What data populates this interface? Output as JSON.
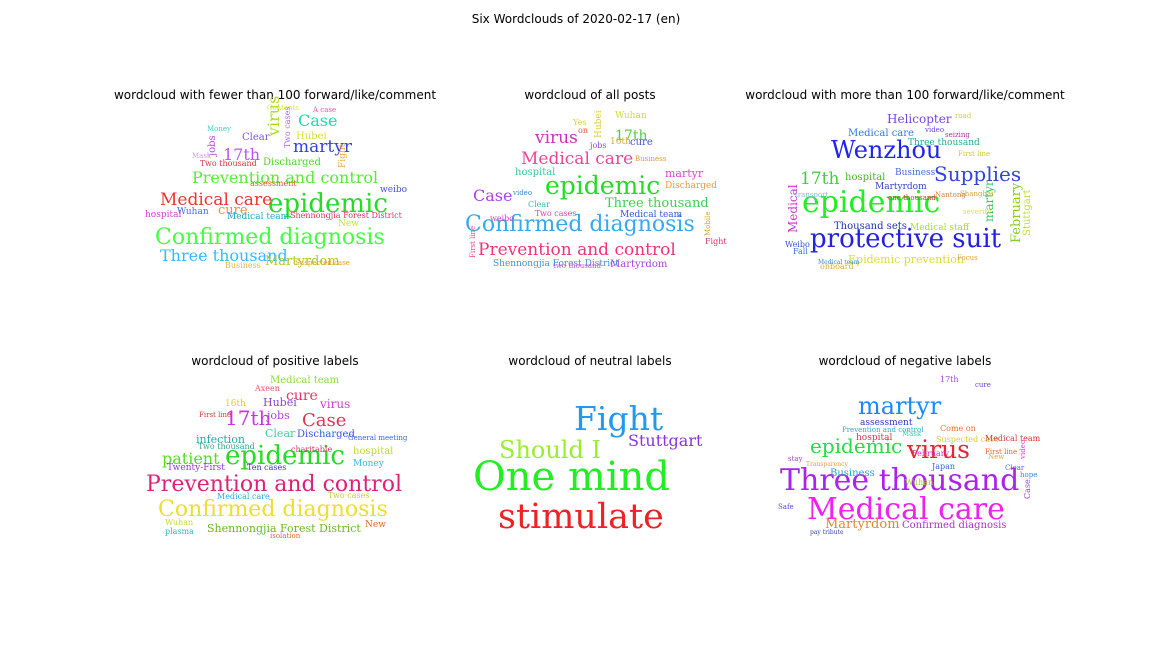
{
  "figure_title": "Six Wordclouds of 2020-02-17 (en)",
  "chart_data": [
    {
      "type": "wordcloud",
      "title": "wordcloud with fewer than 100 forward/like/comment",
      "words": [
        {
          "text": "Confirmed diagnosis",
          "color": "#44ff44"
        },
        {
          "text": "epidemic",
          "color": "#22dd22"
        },
        {
          "text": "Prevention and control",
          "color": "#55ee33"
        },
        {
          "text": "Three thousand",
          "color": "#33bbff"
        },
        {
          "text": "Medical care",
          "color": "#ee3333"
        },
        {
          "text": "martyr",
          "color": "#3344dd"
        },
        {
          "text": "Case",
          "color": "#22ddaa"
        },
        {
          "text": "virus",
          "color": "#aadd22"
        },
        {
          "text": "17th",
          "color": "#bb55ee"
        },
        {
          "text": "cure",
          "color": "#ff8833"
        },
        {
          "text": "Martyrdom",
          "color": "#aacc22"
        },
        {
          "text": "Shennongjia Forest District",
          "color": "#dd3366"
        },
        {
          "text": "Discharged",
          "color": "#55cc33"
        },
        {
          "text": "Hubei",
          "color": "#dddd33"
        },
        {
          "text": "Clear",
          "color": "#7755dd"
        },
        {
          "text": "Wuhan",
          "color": "#3377ee"
        },
        {
          "text": "Medical team",
          "color": "#22aacc"
        },
        {
          "text": "hospital",
          "color": "#cc44cc"
        },
        {
          "text": "weibo",
          "color": "#4455dd"
        },
        {
          "text": "New",
          "color": "#ccdd33"
        },
        {
          "text": "Business",
          "color": "#ddbb33"
        },
        {
          "text": "jobs",
          "color": "#bb44dd"
        },
        {
          "text": "Fight",
          "color": "#eeaa33"
        },
        {
          "text": "Two thousand",
          "color": "#dd3344"
        },
        {
          "text": "Money",
          "color": "#44cccc"
        },
        {
          "text": "Two cases",
          "color": "#aa66dd"
        },
        {
          "text": "assessment",
          "color": "#dd5533"
        },
        {
          "text": "Suspected case",
          "color": "#ee9933"
        },
        {
          "text": "Contents",
          "color": "#ccee44"
        },
        {
          "text": "A case",
          "color": "#ee55aa"
        },
        {
          "text": "Mask",
          "color": "#dd99ee"
        }
      ]
    },
    {
      "type": "wordcloud",
      "title": "wordcloud of all posts",
      "words": [
        {
          "text": "Confirmed diagnosis",
          "color": "#33aaee"
        },
        {
          "text": "epidemic",
          "color": "#22dd22"
        },
        {
          "text": "Prevention and control",
          "color": "#ee3377"
        },
        {
          "text": "Medical care",
          "color": "#ee4499"
        },
        {
          "text": "Three thousand",
          "color": "#44cc55"
        },
        {
          "text": "virus",
          "color": "#cc33bb"
        },
        {
          "text": "Case",
          "color": "#aa44dd"
        },
        {
          "text": "17th",
          "color": "#55cc33"
        },
        {
          "text": "martyr",
          "color": "#dd44cc"
        },
        {
          "text": "Medical team",
          "color": "#3355dd"
        },
        {
          "text": "Shennongjia Forest District",
          "color": "#3399dd"
        },
        {
          "text": "Martyrdom",
          "color": "#aa44dd"
        },
        {
          "text": "hospital",
          "color": "#33cc99"
        },
        {
          "text": "cure",
          "color": "#4455cc"
        },
        {
          "text": "Wuhan",
          "color": "#ccdd33"
        },
        {
          "text": "16th",
          "color": "#ccaa33"
        },
        {
          "text": "Yes",
          "color": "#ddcc33"
        },
        {
          "text": "on",
          "color": "#ee5533"
        },
        {
          "text": "jobs",
          "color": "#9944dd"
        },
        {
          "text": "Hubei",
          "color": "#ddcc33"
        },
        {
          "text": "Discharged",
          "color": "#ee9944"
        },
        {
          "text": "Clear",
          "color": "#33bbaa"
        },
        {
          "text": "Two cases",
          "color": "#dd44aa"
        },
        {
          "text": "weibo",
          "color": "#cc44cc"
        },
        {
          "text": "Fight",
          "color": "#dd3366"
        },
        {
          "text": "Business",
          "color": "#dd9933"
        },
        {
          "text": "Mobile",
          "color": "#ccaa33"
        },
        {
          "text": "First line",
          "color": "#ee4488"
        },
        {
          "text": "two thousand",
          "color": "#bb55dd"
        },
        {
          "text": "video",
          "color": "#3388dd"
        }
      ]
    },
    {
      "type": "wordcloud",
      "title": "wordcloud with more than 100 forward/like/comment",
      "words": [
        {
          "text": "epidemic",
          "color": "#22ee22"
        },
        {
          "text": "protective suit",
          "color": "#2222dd"
        },
        {
          "text": "Wenzhou",
          "color": "#2222ee"
        },
        {
          "text": "Supplies",
          "color": "#3344dd"
        },
        {
          "text": "17th",
          "color": "#44cc44"
        },
        {
          "text": "Helicopter",
          "color": "#7744dd"
        },
        {
          "text": "Medical care",
          "color": "#3377dd"
        },
        {
          "text": "Three thousand",
          "color": "#22aa99"
        },
        {
          "text": "hospital",
          "color": "#44bb22"
        },
        {
          "text": "Martyrdom",
          "color": "#3344bb"
        },
        {
          "text": "Business",
          "color": "#4466dd"
        },
        {
          "text": "Thousand sets",
          "color": "#2233aa"
        },
        {
          "text": "Medical staff",
          "color": "#aadd33"
        },
        {
          "text": "Epidemic prevention",
          "color": "#dddd33"
        },
        {
          "text": "martyr",
          "color": "#33cc66"
        },
        {
          "text": "February",
          "color": "#88cc22"
        },
        {
          "text": "Stuttgart",
          "color": "#bbdd44"
        },
        {
          "text": "Medical",
          "color": "#cc33cc"
        },
        {
          "text": "Weibo",
          "color": "#3355dd"
        },
        {
          "text": "Fall",
          "color": "#3377dd"
        },
        {
          "text": "onboard",
          "color": "#ddaa33"
        },
        {
          "text": "Focus",
          "color": "#ddaa33"
        },
        {
          "text": "First line",
          "color": "#cccc33"
        },
        {
          "text": "Medical team",
          "color": "#3388cc"
        },
        {
          "text": "one thousand",
          "color": "#cc3333"
        },
        {
          "text": "video",
          "color": "#6644dd"
        },
        {
          "text": "seizing",
          "color": "#aa33aa"
        },
        {
          "text": "Nantong",
          "color": "#cc8833"
        },
        {
          "text": "Shanghai",
          "color": "#ccaa33"
        },
        {
          "text": "severity",
          "color": "#dddd55"
        },
        {
          "text": "road",
          "color": "#cccc44"
        },
        {
          "text": "transport",
          "color": "#88bbdd"
        }
      ]
    },
    {
      "type": "wordcloud",
      "title": "wordcloud of positive labels",
      "words": [
        {
          "text": "Prevention and control",
          "color": "#dd2277"
        },
        {
          "text": "Confirmed diagnosis",
          "color": "#eedd33"
        },
        {
          "text": "epidemic",
          "color": "#22dd22"
        },
        {
          "text": "patient",
          "color": "#55dd22"
        },
        {
          "text": "Case",
          "color": "#dd3355"
        },
        {
          "text": "17th",
          "color": "#cc33dd"
        },
        {
          "text": "cure",
          "color": "#ee3366"
        },
        {
          "text": "virus",
          "color": "#cc44cc"
        },
        {
          "text": "Hubei",
          "color": "#8844dd"
        },
        {
          "text": "16th",
          "color": "#ddcc33"
        },
        {
          "text": "jobs",
          "color": "#aa44dd"
        },
        {
          "text": "Clear",
          "color": "#44ccaa"
        },
        {
          "text": "Discharged",
          "color": "#3355dd"
        },
        {
          "text": "infection",
          "color": "#22aaaa"
        },
        {
          "text": "Shennongjia Forest District",
          "color": "#66bb22"
        },
        {
          "text": "Medical team",
          "color": "#88dd33"
        },
        {
          "text": "hospital",
          "color": "#bbdd33"
        },
        {
          "text": "Money",
          "color": "#33bbdd"
        },
        {
          "text": "New",
          "color": "#dd6633"
        },
        {
          "text": "Wuhan",
          "color": "#ccdd33"
        },
        {
          "text": "Medical care",
          "color": "#33aadd"
        },
        {
          "text": "Two cases",
          "color": "#cccc33"
        },
        {
          "text": "Ten cases",
          "color": "#3333aa"
        },
        {
          "text": "charitable",
          "color": "#dd3366"
        },
        {
          "text": "General meeting",
          "color": "#3366dd"
        },
        {
          "text": "Axeen",
          "color": "#ee5566"
        },
        {
          "text": "Twenty-First",
          "color": "#9933dd"
        },
        {
          "text": "Two thousand",
          "color": "#33aa88"
        },
        {
          "text": "plasma",
          "color": "#33bbbb"
        },
        {
          "text": "isolation",
          "color": "#dd6633"
        },
        {
          "text": "First line",
          "color": "#dd3333"
        }
      ]
    },
    {
      "type": "wordcloud",
      "title": "wordcloud of neutral labels",
      "words": [
        {
          "text": "One mind",
          "color": "#22ee22"
        },
        {
          "text": "stimulate",
          "color": "#ee2222"
        },
        {
          "text": "Fight",
          "color": "#2299ee"
        },
        {
          "text": "Should I",
          "color": "#99ee33"
        },
        {
          "text": "Stuttgart",
          "color": "#8833dd"
        }
      ]
    },
    {
      "type": "wordcloud",
      "title": "wordcloud of negative labels",
      "words": [
        {
          "text": "Three thousand",
          "color": "#aa22ee"
        },
        {
          "text": "Medical care",
          "color": "#ee22ee"
        },
        {
          "text": "martyr",
          "color": "#2288ee"
        },
        {
          "text": "virus",
          "color": "#ee2233"
        },
        {
          "text": "epidemic",
          "color": "#22dd44"
        },
        {
          "text": "Martyrdom",
          "color": "#dd8833"
        },
        {
          "text": "Confirmed diagnosis",
          "color": "#aa33cc"
        },
        {
          "text": "assessment",
          "color": "#3333cc"
        },
        {
          "text": "Business",
          "color": "#22aacc"
        },
        {
          "text": "hospital",
          "color": "#dd3355"
        },
        {
          "text": "Suspected case",
          "color": "#ddcc33"
        },
        {
          "text": "Medical team",
          "color": "#dd3333"
        },
        {
          "text": "Come on",
          "color": "#ee7733"
        },
        {
          "text": "Prevention and control",
          "color": "#33aacc"
        },
        {
          "text": "February",
          "color": "#cc33cc"
        },
        {
          "text": "Japan",
          "color": "#3366dd"
        },
        {
          "text": "Wuhan",
          "color": "#aacc33"
        },
        {
          "text": "cure",
          "color": "#6644dd"
        },
        {
          "text": "17th",
          "color": "#aa44dd"
        },
        {
          "text": "Case",
          "color": "#9944cc"
        },
        {
          "text": "Clear",
          "color": "#3377dd"
        },
        {
          "text": "stay",
          "color": "#aa44cc"
        },
        {
          "text": "Safe",
          "color": "#5544dd"
        },
        {
          "text": "First line",
          "color": "#dd6633"
        },
        {
          "text": "Mask",
          "color": "#44ccaa"
        },
        {
          "text": "New",
          "color": "#ddaa33"
        },
        {
          "text": "hope",
          "color": "#3388dd"
        },
        {
          "text": "Transparency",
          "color": "#ccaa33"
        },
        {
          "text": "video",
          "color": "#cc44cc"
        },
        {
          "text": "pay tribute",
          "color": "#3344aa"
        }
      ]
    }
  ]
}
